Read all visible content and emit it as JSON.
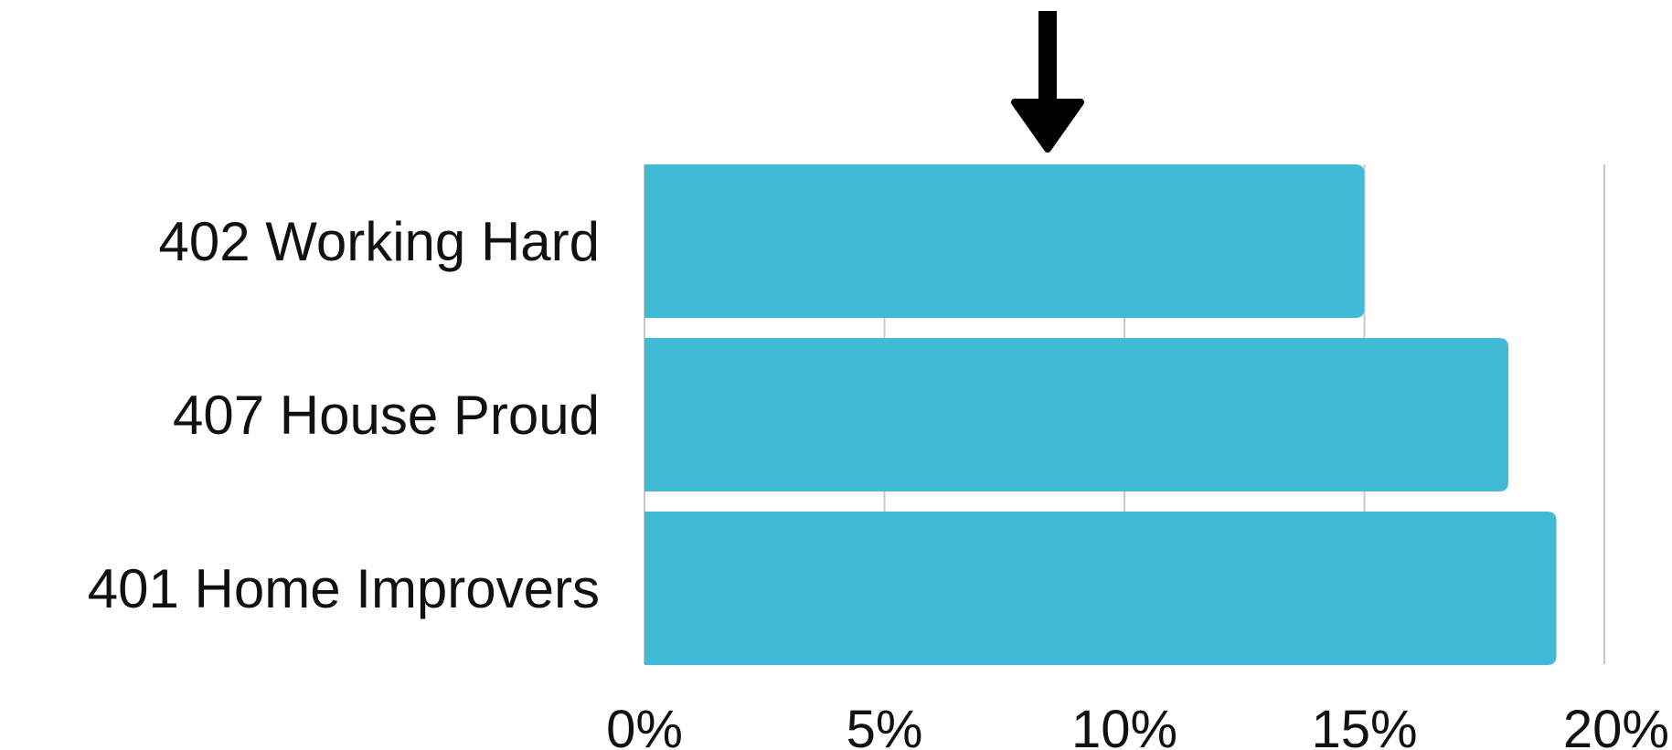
{
  "chart_data": {
    "type": "bar",
    "orientation": "horizontal",
    "categories": [
      "402 Working Hard",
      "407 House Proud",
      "401 Home Improvers"
    ],
    "values": [
      15,
      18,
      19
    ],
    "unit": "%",
    "xlim": [
      0,
      20
    ],
    "xticks": [
      0,
      5,
      10,
      15,
      20
    ],
    "xtick_labels": [
      "0%",
      "5%",
      "10%",
      "15%",
      "20%"
    ],
    "title": "",
    "xlabel": "",
    "ylabel": "",
    "grid": "vertical",
    "legend": "none",
    "annotation": {
      "type": "arrow",
      "direction": "down",
      "value": 8.4
    }
  },
  "colors": {
    "bar": "#41BAD8",
    "grid": "#c8c8c8",
    "text": "#111111",
    "arrow": "#000000"
  }
}
